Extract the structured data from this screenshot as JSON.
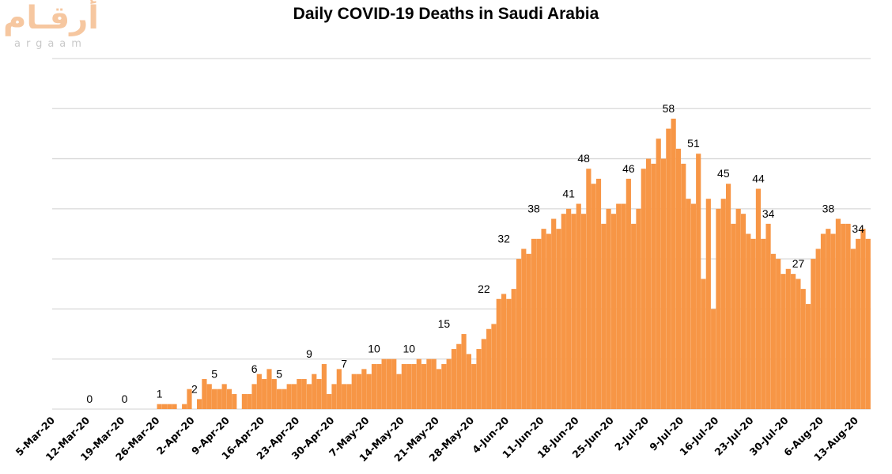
{
  "logo": {
    "arabic": "أرقـام",
    "latin": "argaam"
  },
  "chart_data": {
    "type": "bar",
    "title": "Daily COVID-19 Deaths in Saudi Arabia",
    "xlabel": "",
    "ylabel": "",
    "ylim": [
      0,
      70
    ],
    "grid": true,
    "gridlines_every": 10,
    "show_y_tick_labels": false,
    "color": "#f79646",
    "start_date": "5-Mar-20",
    "end_date": "13-Aug-20",
    "x_tick_labels": [
      "5-Mar-20",
      "12-Mar-20",
      "19-Mar-20",
      "26-Mar-20",
      "2-Apr-20",
      "9-Apr-20",
      "16-Apr-20",
      "23-Apr-20",
      "30-Apr-20",
      "7-May-20",
      "14-May-20",
      "21-May-20",
      "28-May-20",
      "4-Jun-20",
      "11-Jun-20",
      "18-Jun-20",
      "25-Jun-20",
      "2-Jul-20",
      "9-Jul-20",
      "16-Jul-20",
      "23-Jul-20",
      "30-Jul-20",
      "6-Aug-20",
      "13-Aug-20"
    ],
    "values": [
      0,
      0,
      0,
      0,
      0,
      0,
      0,
      0,
      0,
      0,
      0,
      0,
      0,
      0,
      0,
      0,
      0,
      0,
      0,
      0,
      0,
      1,
      1,
      1,
      1,
      0,
      1,
      4,
      0,
      2,
      6,
      5,
      4,
      4,
      5,
      4,
      3,
      0,
      3,
      3,
      5,
      7,
      6,
      8,
      6,
      4,
      4,
      5,
      5,
      6,
      6,
      5,
      7,
      6,
      9,
      3,
      5,
      8,
      5,
      5,
      7,
      7,
      8,
      7,
      9,
      9,
      10,
      10,
      10,
      7,
      9,
      9,
      9,
      10,
      9,
      10,
      10,
      8,
      9,
      10,
      12,
      13,
      15,
      11,
      9,
      12,
      14,
      16,
      17,
      22,
      23,
      22,
      24,
      30,
      32,
      31,
      34,
      34,
      36,
      35,
      38,
      36,
      39,
      40,
      39,
      41,
      39,
      48,
      45,
      46,
      37,
      40,
      39,
      41,
      41,
      46,
      37,
      40,
      48,
      50,
      49,
      54,
      50,
      56,
      58,
      52,
      49,
      42,
      41,
      51,
      26,
      42,
      20,
      40,
      42,
      45,
      37,
      40,
      39,
      35,
      34,
      44,
      34,
      37,
      31,
      30,
      27,
      28,
      27,
      26,
      24,
      21,
      30,
      32,
      35,
      36,
      35,
      38,
      37,
      37,
      32,
      34,
      36,
      34
    ],
    "data_labels": [
      {
        "date": "12-Mar-20",
        "value": 0
      },
      {
        "date": "19-Mar-20",
        "value": 0
      },
      {
        "date": "26-Mar-20",
        "value": 1
      },
      {
        "date": "2-Apr-20",
        "value": 2
      },
      {
        "date": "6-Apr-20",
        "value": 5
      },
      {
        "date": "14-Apr-20",
        "value": 6
      },
      {
        "date": "19-Apr-20",
        "value": 5
      },
      {
        "date": "25-Apr-20",
        "value": 9
      },
      {
        "date": "2-May-20",
        "value": 7
      },
      {
        "date": "8-May-20",
        "value": 10
      },
      {
        "date": "15-May-20",
        "value": 10
      },
      {
        "date": "22-May-20",
        "value": 15
      },
      {
        "date": "30-May-20",
        "value": 22
      },
      {
        "date": "3-Jun-20",
        "value": 32
      },
      {
        "date": "9-Jun-20",
        "value": 38
      },
      {
        "date": "16-Jun-20",
        "value": 41
      },
      {
        "date": "19-Jun-20",
        "value": 48
      },
      {
        "date": "28-Jun-20",
        "value": 46
      },
      {
        "date": "6-Jul-20",
        "value": 58
      },
      {
        "date": "11-Jul-20",
        "value": 51
      },
      {
        "date": "17-Jul-20",
        "value": 45
      },
      {
        "date": "24-Jul-20",
        "value": 44
      },
      {
        "date": "26-Jul-20",
        "value": 34
      },
      {
        "date": "1-Aug-20",
        "value": 27
      },
      {
        "date": "7-Aug-20",
        "value": 38
      },
      {
        "date": "13-Aug-20",
        "value": 34
      }
    ]
  }
}
